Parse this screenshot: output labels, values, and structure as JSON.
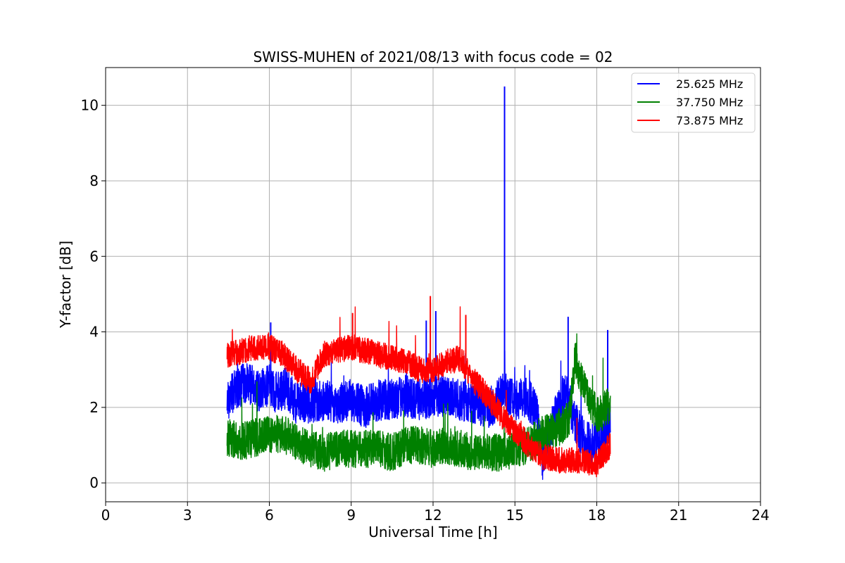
{
  "chart_data": {
    "type": "line",
    "title": "SWISS-MUHEN of 2021/08/13 with focus code = 02",
    "xlabel": "Universal Time [h]",
    "ylabel": "Y-factor [dB]",
    "xlim": [
      0,
      24
    ],
    "ylim": [
      -0.5,
      11
    ],
    "xticks": [
      0,
      3,
      6,
      9,
      12,
      15,
      18,
      21,
      24
    ],
    "yticks": [
      0,
      2,
      4,
      6,
      8,
      10
    ],
    "grid": true,
    "legend_position": "top-right",
    "series": [
      {
        "name": "25.625 MHz",
        "color": "#0000ff",
        "points": [
          [
            4.45,
            2.2
          ],
          [
            4.8,
            2.5
          ],
          [
            5.2,
            2.7
          ],
          [
            5.6,
            2.4
          ],
          [
            6.0,
            2.6
          ],
          [
            6.2,
            2.4
          ],
          [
            6.6,
            2.5
          ],
          [
            7.0,
            2.1
          ],
          [
            7.5,
            2.1
          ],
          [
            8.0,
            2.2
          ],
          [
            8.5,
            2.1
          ],
          [
            9.0,
            2.2
          ],
          [
            9.5,
            2.0
          ],
          [
            10.0,
            2.2
          ],
          [
            10.5,
            2.2
          ],
          [
            11.0,
            2.3
          ],
          [
            11.5,
            2.2
          ],
          [
            12.0,
            2.3
          ],
          [
            12.5,
            2.3
          ],
          [
            13.0,
            2.2
          ],
          [
            13.5,
            2.1
          ],
          [
            14.0,
            2.0
          ],
          [
            14.3,
            2.1
          ],
          [
            14.6,
            2.5
          ],
          [
            14.62,
            10.5
          ],
          [
            14.64,
            2.4
          ],
          [
            15.0,
            2.2
          ],
          [
            15.4,
            2.3
          ],
          [
            15.8,
            1.9
          ],
          [
            16.0,
            0.6
          ],
          [
            16.3,
            1.4
          ],
          [
            16.6,
            2.0
          ],
          [
            16.9,
            2.4
          ],
          [
            17.2,
            1.6
          ],
          [
            17.5,
            1.2
          ],
          [
            17.8,
            1.0
          ],
          [
            18.1,
            1.1
          ],
          [
            18.4,
            1.3
          ],
          [
            18.5,
            1.6
          ]
        ],
        "peaks": [
          [
            6.05,
            4.25
          ],
          [
            11.75,
            4.3
          ],
          [
            12.1,
            4.55
          ],
          [
            14.62,
            10.5
          ],
          [
            16.95,
            4.4
          ],
          [
            18.4,
            4.05
          ]
        ]
      },
      {
        "name": "37.750 MHz",
        "color": "#008000",
        "points": [
          [
            4.45,
            1.2
          ],
          [
            5.0,
            1.1
          ],
          [
            5.5,
            1.2
          ],
          [
            6.0,
            1.3
          ],
          [
            6.5,
            1.3
          ],
          [
            7.0,
            1.1
          ],
          [
            7.5,
            0.9
          ],
          [
            8.0,
            0.8
          ],
          [
            8.5,
            0.9
          ],
          [
            9.0,
            0.9
          ],
          [
            9.5,
            0.9
          ],
          [
            10.0,
            0.9
          ],
          [
            10.5,
            0.8
          ],
          [
            11.0,
            1.0
          ],
          [
            11.5,
            1.0
          ],
          [
            12.0,
            0.9
          ],
          [
            12.5,
            1.0
          ],
          [
            13.0,
            0.9
          ],
          [
            13.5,
            0.8
          ],
          [
            14.0,
            0.8
          ],
          [
            14.5,
            0.8
          ],
          [
            15.0,
            0.9
          ],
          [
            15.5,
            1.0
          ],
          [
            16.0,
            1.3
          ],
          [
            16.5,
            1.4
          ],
          [
            17.0,
            1.7
          ],
          [
            17.2,
            3.3
          ],
          [
            17.5,
            2.6
          ],
          [
            17.8,
            2.0
          ],
          [
            18.1,
            1.8
          ],
          [
            18.5,
            2.1
          ]
        ],
        "peaks": [
          [
            17.25,
            3.7
          ]
        ]
      },
      {
        "name": "73.875 MHz",
        "color": "#ff0000",
        "points": [
          [
            4.45,
            3.4
          ],
          [
            5.0,
            3.5
          ],
          [
            5.5,
            3.6
          ],
          [
            6.0,
            3.6
          ],
          [
            6.5,
            3.4
          ],
          [
            7.0,
            3.0
          ],
          [
            7.5,
            2.7
          ],
          [
            8.0,
            3.4
          ],
          [
            8.5,
            3.5
          ],
          [
            9.0,
            3.6
          ],
          [
            9.5,
            3.5
          ],
          [
            10.0,
            3.4
          ],
          [
            10.5,
            3.3
          ],
          [
            11.0,
            3.2
          ],
          [
            11.5,
            3.0
          ],
          [
            12.0,
            3.0
          ],
          [
            12.5,
            3.2
          ],
          [
            13.0,
            3.3
          ],
          [
            13.5,
            2.7
          ],
          [
            14.0,
            2.3
          ],
          [
            14.5,
            1.8
          ],
          [
            15.0,
            1.4
          ],
          [
            15.5,
            1.0
          ],
          [
            16.0,
            0.7
          ],
          [
            16.5,
            0.6
          ],
          [
            17.0,
            0.6
          ],
          [
            17.5,
            0.6
          ],
          [
            18.0,
            0.5
          ],
          [
            18.5,
            1.0
          ]
        ],
        "peaks": [
          [
            11.9,
            4.95
          ],
          [
            9.05,
            4.5
          ],
          [
            13.2,
            4.45
          ]
        ]
      }
    ]
  }
}
